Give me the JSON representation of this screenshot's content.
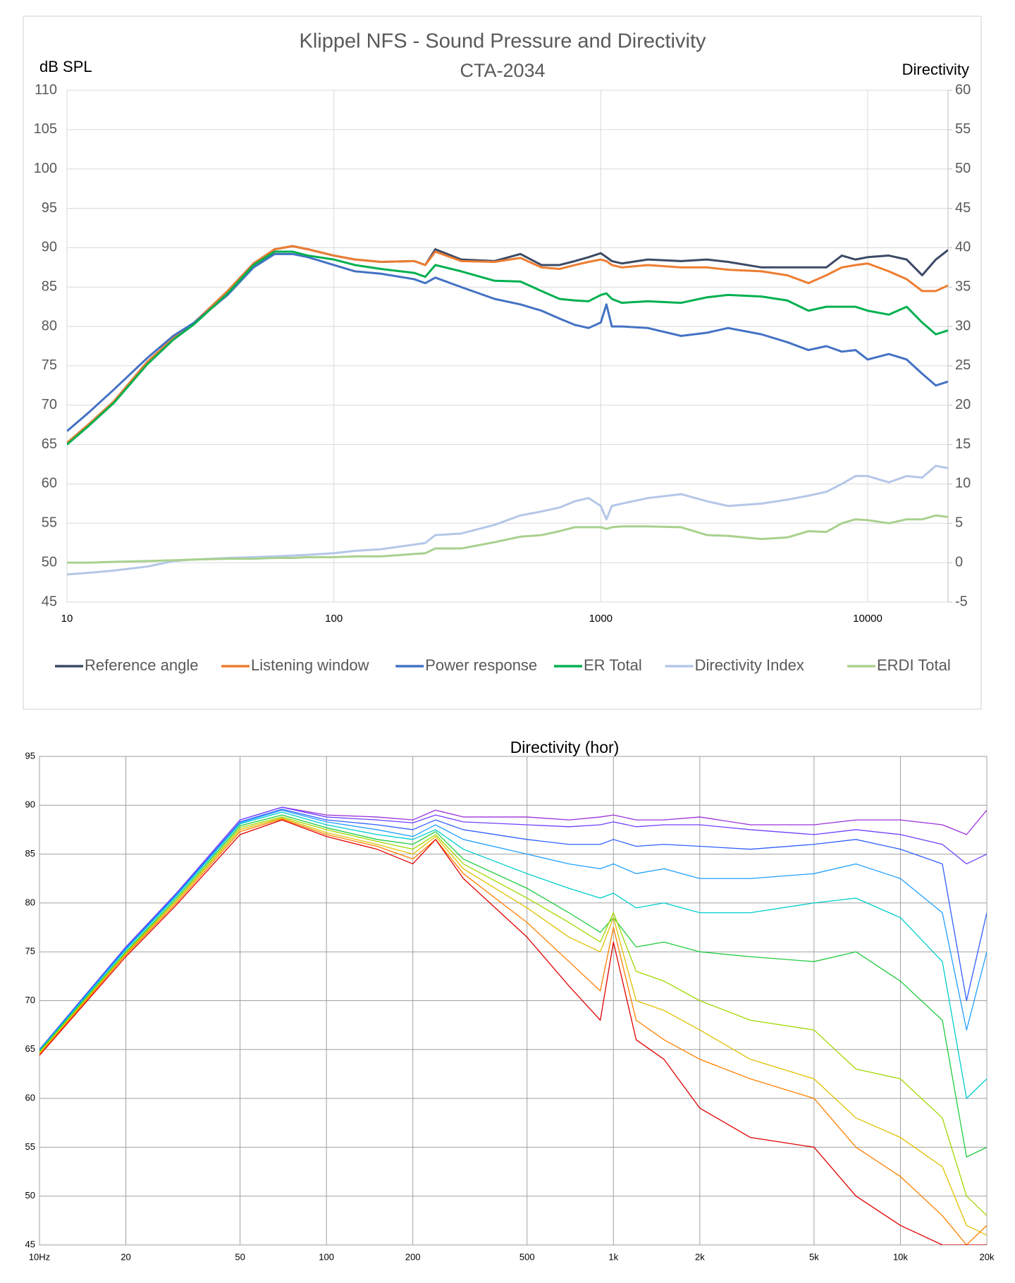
{
  "chart_data": [
    {
      "type": "line",
      "title": "Klippel NFS - Sound Pressure and Directivity",
      "subtitle": "CTA-2034",
      "y_label": "dB SPL",
      "y2_label": "Directivity",
      "log_x": true,
      "grid": true,
      "legend": "bottom",
      "xlim": [
        10,
        20000
      ],
      "xticks": [
        10,
        100,
        1000,
        10000
      ],
      "ylim": [
        45,
        110
      ],
      "yticks": [
        45,
        50,
        55,
        60,
        65,
        70,
        75,
        80,
        85,
        90,
        95,
        100,
        105,
        110
      ],
      "y2lim": [
        -5,
        60
      ],
      "y2ticks": [
        -5,
        0,
        5,
        10,
        15,
        20,
        25,
        30,
        35,
        40,
        45,
        50,
        55,
        60
      ],
      "x": [
        10,
        12,
        15,
        20,
        25,
        30,
        40,
        50,
        60,
        70,
        80,
        100,
        120,
        150,
        200,
        220,
        240,
        300,
        400,
        500,
        600,
        700,
        800,
        900,
        1000,
        1050,
        1100,
        1200,
        1500,
        2000,
        2500,
        3000,
        4000,
        5000,
        6000,
        7000,
        8000,
        9000,
        10000,
        12000,
        14000,
        16000,
        18000,
        20000
      ],
      "series": [
        {
          "name": "Reference angle",
          "color": "#3b4a66",
          "values": [
            65.2,
            67.5,
            70.5,
            75.5,
            78.5,
            80.5,
            84.5,
            88,
            89.8,
            90.2,
            89.8,
            89,
            88.5,
            88.2,
            88.3,
            87.8,
            89.8,
            88.5,
            88.3,
            89.2,
            87.8,
            87.8,
            88.3,
            88.8,
            89.3,
            88.8,
            88.3,
            88,
            88.5,
            88.3,
            88.5,
            88.2,
            87.5,
            87.5,
            87.5,
            87.5,
            89,
            88.5,
            88.8,
            89,
            88.5,
            86.5,
            88.5,
            89.7
          ]
        },
        {
          "name": "Listening window",
          "color": "#ed7d31",
          "values": [
            65.2,
            67.5,
            70.5,
            75.5,
            78.5,
            80.5,
            84.5,
            88,
            89.8,
            90.2,
            89.8,
            89,
            88.5,
            88.2,
            88.3,
            87.8,
            89.5,
            88.3,
            88.2,
            88.7,
            87.5,
            87.3,
            87.8,
            88.2,
            88.5,
            88.3,
            87.8,
            87.5,
            87.8,
            87.5,
            87.5,
            87.2,
            87,
            86.5,
            85.5,
            86.5,
            87.5,
            87.8,
            88,
            87,
            86,
            84.5,
            84.5,
            85.2
          ]
        },
        {
          "name": "Power response",
          "color": "#4472c4",
          "values": [
            66.7,
            69,
            72,
            76,
            78.8,
            80.5,
            84,
            87.5,
            89.2,
            89.2,
            88.8,
            87.8,
            87,
            86.7,
            86,
            85.5,
            86.2,
            85,
            83.5,
            82.8,
            82,
            81,
            80.2,
            79.8,
            80.5,
            82.8,
            80,
            80,
            79.8,
            78.8,
            79.2,
            79.8,
            79,
            78,
            77,
            77.5,
            76.8,
            77,
            75.8,
            76.5,
            75.8,
            74,
            72.5,
            73
          ]
        },
        {
          "name": "ER Total",
          "color": "#00b050",
          "values": [
            65,
            67.3,
            70.3,
            75.2,
            78.3,
            80.3,
            84.2,
            87.8,
            89.5,
            89.5,
            89,
            88.5,
            87.8,
            87.3,
            86.8,
            86.3,
            87.8,
            87,
            85.8,
            85.7,
            84.5,
            83.5,
            83.3,
            83.2,
            84,
            84.2,
            83.5,
            83,
            83.2,
            83,
            83.7,
            84,
            83.8,
            83.3,
            82,
            82.5,
            82.5,
            82.5,
            82,
            81.5,
            82.5,
            80.5,
            79,
            79.5
          ]
        },
        {
          "name": "Directivity Index",
          "color": "#b4c7e7",
          "axis": "y2",
          "values": [
            -1.5,
            -1.3,
            -1,
            -0.5,
            0.2,
            0.4,
            0.6,
            0.7,
            0.8,
            0.9,
            1,
            1.2,
            1.5,
            1.7,
            2.3,
            2.5,
            3.5,
            3.7,
            4.8,
            6,
            6.5,
            7,
            7.8,
            8.2,
            7.2,
            5.5,
            7.2,
            7.5,
            8.2,
            8.7,
            7.8,
            7.2,
            7.5,
            8,
            8.5,
            9,
            10,
            11,
            11,
            10.2,
            11,
            10.8,
            12.3,
            12
          ]
        },
        {
          "name": "ERDI Total",
          "color": "#a9d18e",
          "axis": "y2",
          "values": [
            0,
            0,
            0.1,
            0.2,
            0.3,
            0.4,
            0.5,
            0.5,
            0.6,
            0.6,
            0.7,
            0.7,
            0.8,
            0.8,
            1.1,
            1.2,
            1.8,
            1.8,
            2.6,
            3.3,
            3.5,
            4,
            4.5,
            4.5,
            4.5,
            4.3,
            4.5,
            4.6,
            4.6,
            4.5,
            3.5,
            3.4,
            3,
            3.2,
            4,
            3.9,
            5,
            5.5,
            5.4,
            5,
            5.5,
            5.5,
            6,
            5.8
          ]
        }
      ]
    },
    {
      "type": "line",
      "title": "Directivity (hor)",
      "log_x": true,
      "grid": true,
      "xlim": [
        10,
        20000
      ],
      "xticks": [
        {
          "value": 10,
          "label": "10Hz"
        },
        20,
        50,
        100,
        200,
        500,
        {
          "value": 1000,
          "label": "1k"
        },
        {
          "value": 2000,
          "label": "2k"
        },
        {
          "value": 5000,
          "label": "5k"
        },
        {
          "value": 10000,
          "label": "10k"
        },
        {
          "value": 20000,
          "label": "20k"
        }
      ],
      "ylim": [
        45,
        95
      ],
      "yticks": [
        45,
        50,
        55,
        60,
        65,
        70,
        75,
        80,
        85,
        90,
        95
      ],
      "x": [
        10,
        20,
        30,
        50,
        70,
        100,
        150,
        200,
        240,
        300,
        500,
        700,
        900,
        1000,
        1200,
        1500,
        2000,
        3000,
        5000,
        7000,
        10000,
        14000,
        17000,
        20000
      ],
      "series": [
        {
          "color": "#9b30d9",
          "values": [
            65,
            75.5,
            81,
            88.5,
            89.8,
            89,
            88.8,
            88.5,
            89.5,
            88.8,
            88.8,
            88.5,
            88.8,
            89,
            88.5,
            88.5,
            88.8,
            88,
            88,
            88.5,
            88.5,
            88,
            87,
            89.5
          ]
        },
        {
          "color": "#7040ff",
          "values": [
            65,
            75.5,
            81,
            88.5,
            89.8,
            88.8,
            88.5,
            88.2,
            89,
            88.3,
            88,
            87.8,
            88,
            88.3,
            87.8,
            88,
            88,
            87.5,
            87,
            87.5,
            87,
            86,
            84,
            85
          ]
        },
        {
          "color": "#3060ff",
          "values": [
            65,
            75.4,
            80.9,
            88.3,
            89.6,
            88.5,
            88,
            87.5,
            88.5,
            87.5,
            86.5,
            86,
            86,
            86.5,
            85.8,
            86,
            85.8,
            85.5,
            86,
            86.5,
            85.5,
            84,
            70,
            79
          ]
        },
        {
          "color": "#20a0ff",
          "values": [
            64.9,
            75.3,
            80.8,
            88.2,
            89.5,
            88.3,
            87.5,
            86.8,
            88,
            86.5,
            85,
            84,
            83.5,
            84,
            83,
            83.5,
            82.5,
            82.5,
            83,
            84,
            82.5,
            79,
            67,
            75
          ]
        },
        {
          "color": "#00cccc",
          "values": [
            64.9,
            75.2,
            80.7,
            88.1,
            89.3,
            88,
            87,
            86.5,
            87.5,
            85.5,
            83,
            81.5,
            80.5,
            81,
            79.5,
            80,
            79,
            79,
            80,
            80.5,
            78.5,
            74,
            60,
            62
          ]
        },
        {
          "color": "#20cc40",
          "values": [
            64.8,
            75,
            80.5,
            87.9,
            89,
            87.7,
            86.5,
            86,
            87.3,
            84.5,
            81.5,
            79,
            77,
            78.5,
            75.5,
            76,
            75,
            74.5,
            74,
            75,
            72,
            68,
            54,
            55
          ]
        },
        {
          "color": "#a0d800",
          "values": [
            64.7,
            74.9,
            80.3,
            87.7,
            88.8,
            87.5,
            86.3,
            85.5,
            87,
            84,
            80.5,
            78,
            76,
            79,
            73,
            72,
            70,
            68,
            67,
            63,
            62,
            58,
            50,
            48
          ]
        },
        {
          "color": "#e0c000",
          "values": [
            64.6,
            74.8,
            80.2,
            87.5,
            88.7,
            87.2,
            86,
            85,
            86.8,
            83.5,
            79.5,
            76.5,
            75,
            78.5,
            70,
            69,
            67,
            64,
            62,
            58,
            56,
            53,
            47,
            46
          ]
        },
        {
          "color": "#ff8000",
          "values": [
            64.5,
            74.7,
            80,
            87.3,
            88.6,
            87,
            85.8,
            84.5,
            86.5,
            83,
            78,
            74,
            71,
            77.5,
            68,
            66,
            64,
            62,
            60,
            55,
            52,
            48,
            45,
            47
          ]
        },
        {
          "color": "#e00000",
          "values": [
            64.4,
            74.5,
            79.8,
            87,
            88.5,
            86.8,
            85.5,
            84,
            86.5,
            82.5,
            76.5,
            71.5,
            68,
            76,
            66,
            64,
            59,
            56,
            55,
            50,
            47,
            45,
            45,
            45
          ]
        }
      ]
    }
  ]
}
